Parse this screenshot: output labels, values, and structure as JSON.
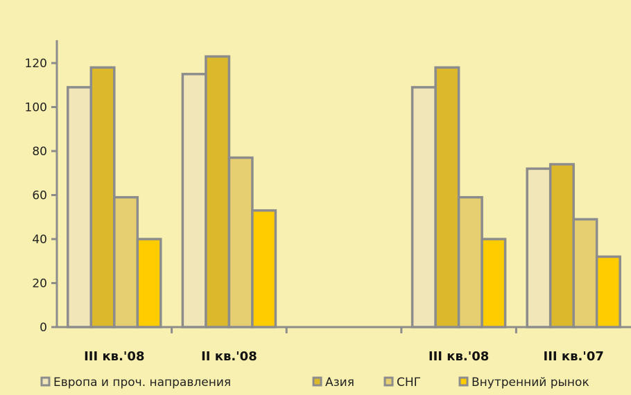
{
  "chart_data": {
    "type": "bar",
    "categories": [
      "III кв.'08",
      "II кв.'08",
      "",
      "III кв.'08",
      "III кв.'07"
    ],
    "series": [
      {
        "name": "Европа и проч. направления",
        "values": [
          109,
          115,
          null,
          109,
          72
        ]
      },
      {
        "name": "Азия",
        "values": [
          118,
          123,
          null,
          118,
          74
        ]
      },
      {
        "name": "СНГ",
        "values": [
          59,
          77,
          null,
          59,
          49
        ]
      },
      {
        "name": "Внутренний рынок",
        "values": [
          40,
          53,
          null,
          40,
          32
        ]
      }
    ],
    "yticks": [
      0,
      20,
      40,
      60,
      80,
      100,
      120
    ],
    "ylim": [
      0,
      132
    ],
    "legend_position": "bottom",
    "colors": {
      "background": "#f8f0b0",
      "bar_outline": "#8c8c8c",
      "series": [
        "#f1e6b8",
        "#dcb92b",
        "#e6cf70",
        "#ffcc00"
      ]
    }
  }
}
